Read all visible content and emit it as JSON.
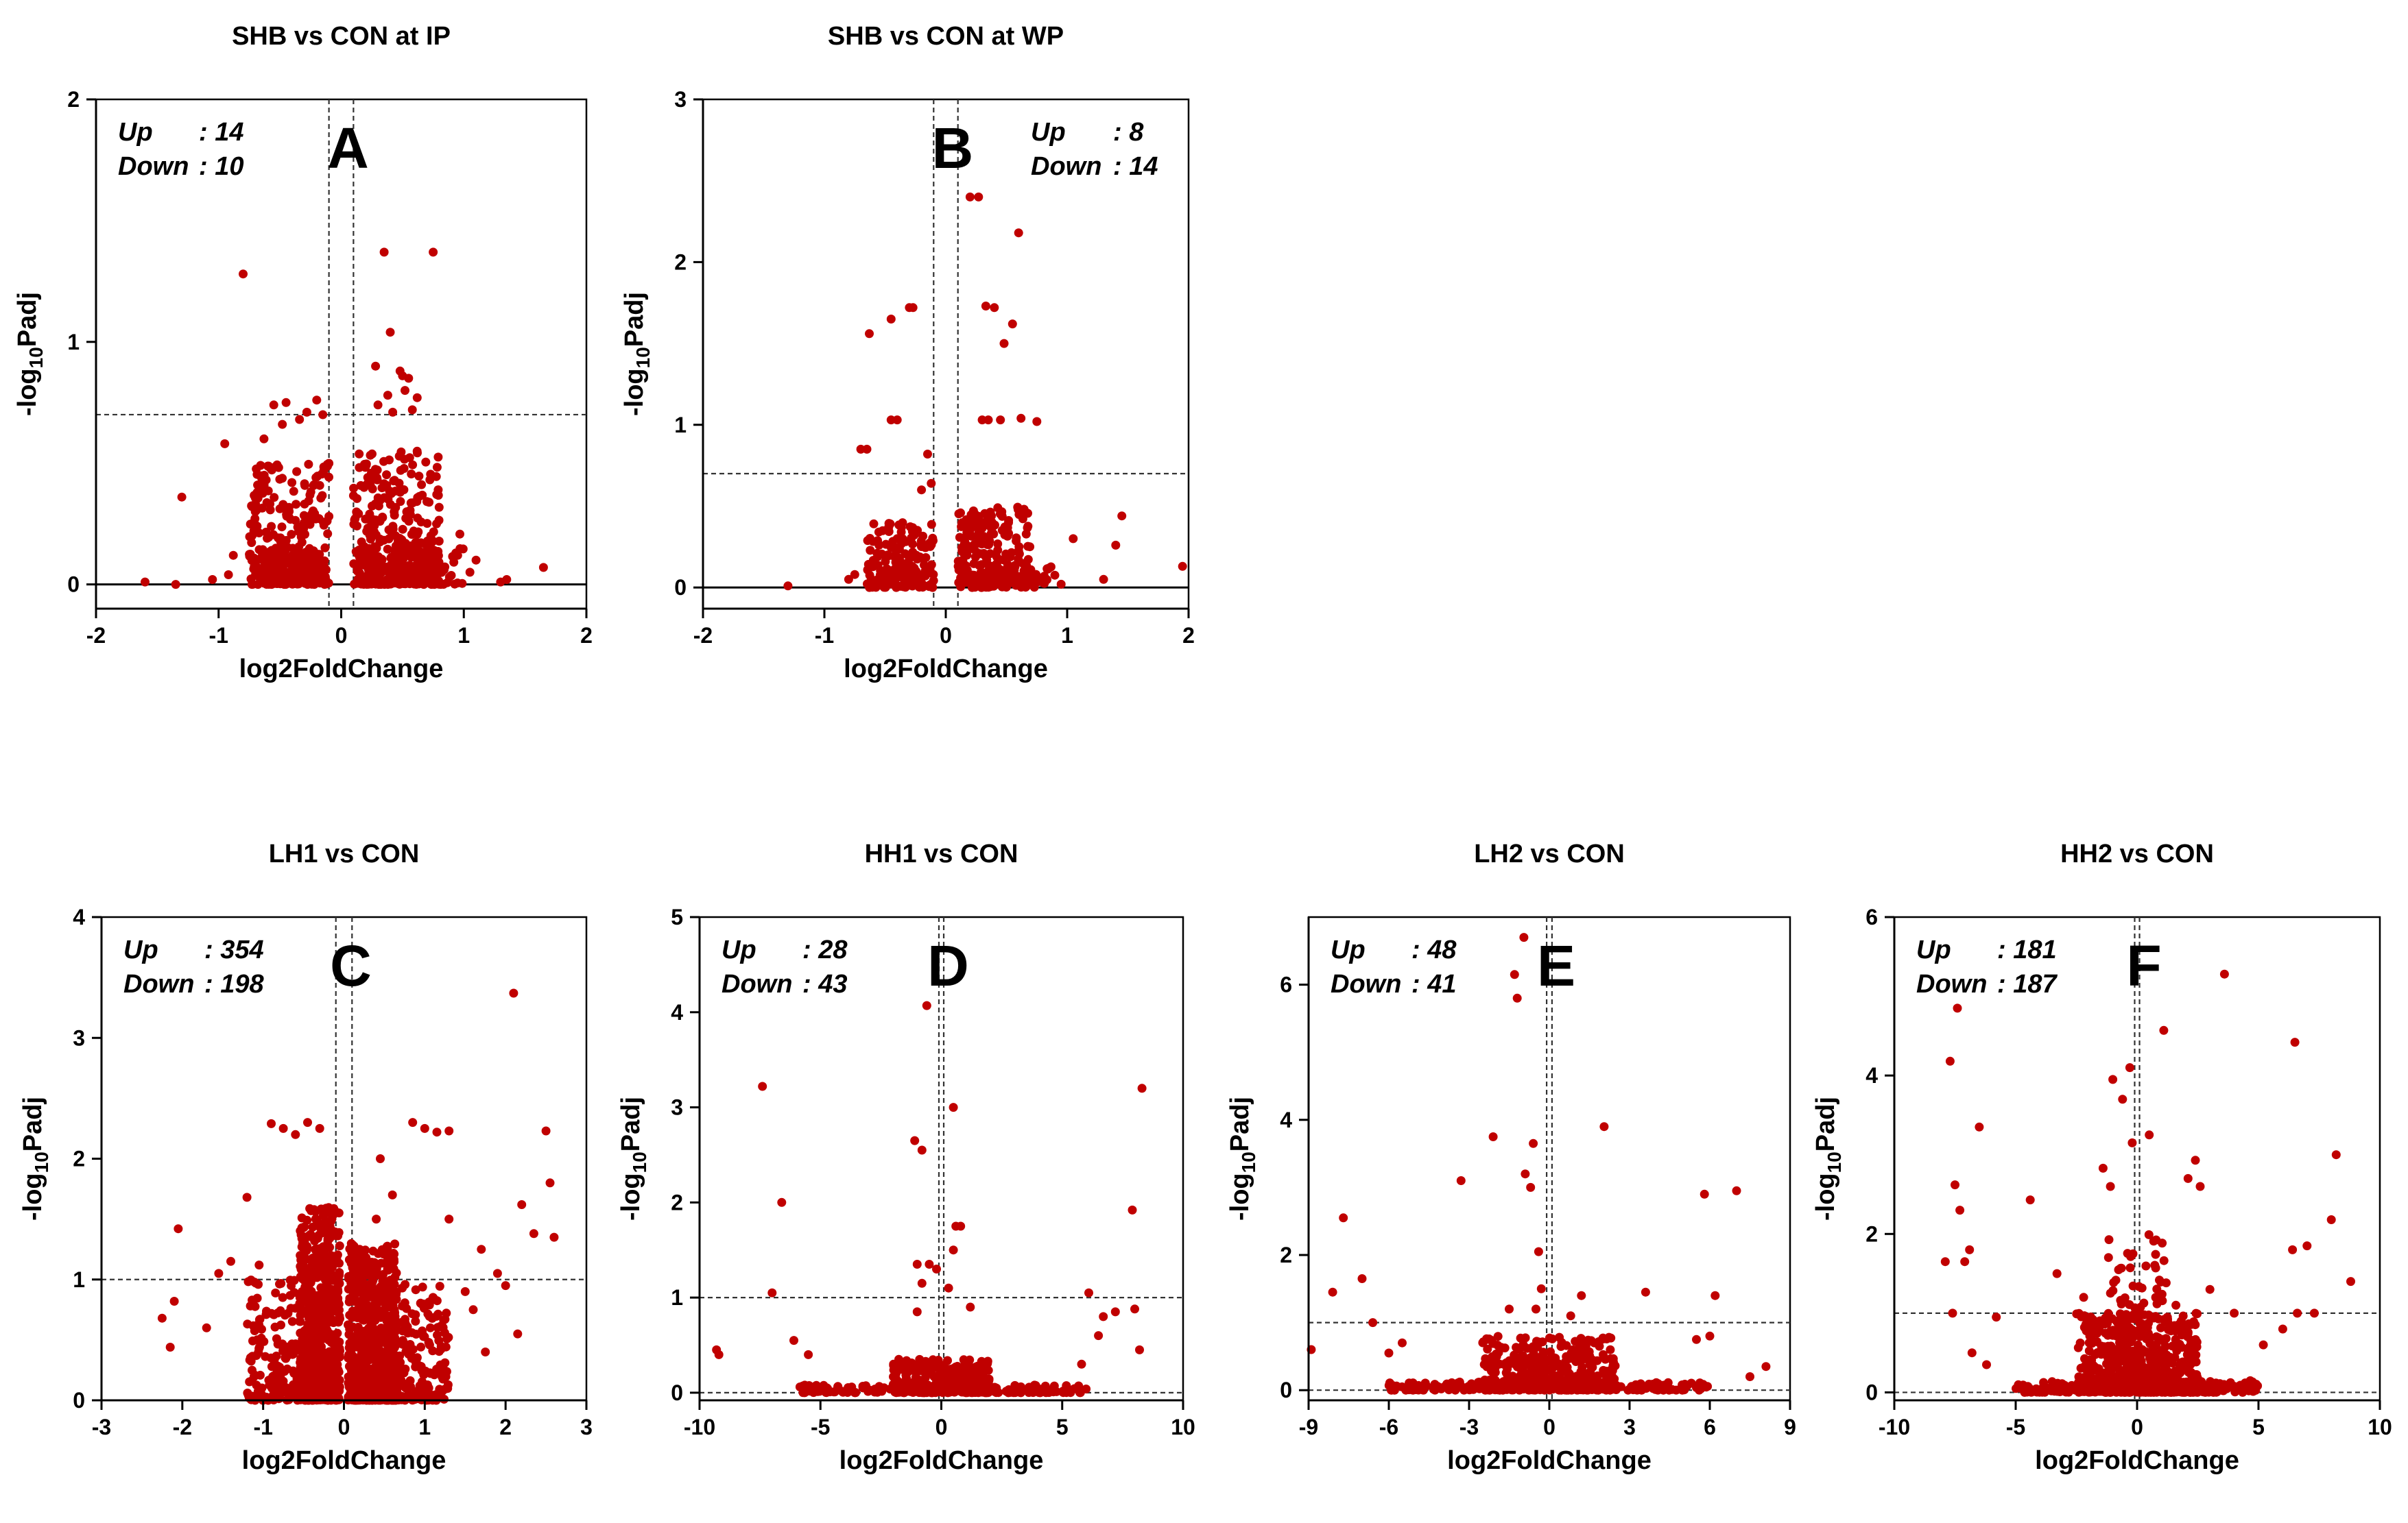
{
  "colors": {
    "points": "#C00000",
    "lines": "#000000"
  },
  "chart_data": [
    {
      "type": "scatter",
      "id": "A",
      "letter": "A",
      "title": "SHB vs CON at IP",
      "xlabel": "log2FoldChange",
      "ylabel": "-log10Padj",
      "xlim": [
        -2,
        2
      ],
      "ylim": [
        -0.1,
        2
      ],
      "xticks": [
        -2,
        -1,
        0,
        1,
        2
      ],
      "yticks": [
        0,
        1,
        2
      ],
      "thresholds": {
        "x": [
          -0.1,
          0.1
        ],
        "y": 0.7
      },
      "zero_line": "solid",
      "legend": {
        "up_label": "Up",
        "up_value": ": 14",
        "down_label": "Down",
        "down_value": ": 10"
      },
      "points": [
        [
          -0.8,
          1.28
        ],
        [
          0.35,
          1.37
        ],
        [
          0.75,
          1.37
        ],
        [
          0.4,
          1.04
        ],
        [
          0.48,
          0.88
        ],
        [
          0.5,
          0.86
        ],
        [
          0.28,
          0.9
        ],
        [
          0.55,
          0.85
        ],
        [
          0.52,
          0.8
        ],
        [
          0.38,
          0.78
        ],
        [
          0.62,
          0.77
        ],
        [
          0.3,
          0.74
        ],
        [
          0.58,
          0.72
        ],
        [
          0.42,
          0.71
        ],
        [
          -0.45,
          0.75
        ],
        [
          -0.2,
          0.76
        ],
        [
          -0.55,
          0.74
        ],
        [
          -0.28,
          0.71
        ],
        [
          -0.15,
          0.7
        ],
        [
          -0.48,
          0.66
        ],
        [
          -0.34,
          0.68
        ],
        [
          -0.63,
          0.6
        ],
        [
          -0.95,
          0.58
        ],
        [
          -1.3,
          0.36
        ],
        [
          -1.6,
          0.01
        ],
        [
          -1.35,
          0.0
        ],
        [
          1.65,
          0.07
        ],
        [
          1.3,
          0.01
        ],
        [
          1.35,
          0.02
        ],
        [
          1.05,
          0.05
        ],
        [
          1.1,
          0.1
        ],
        [
          0.95,
          0.12
        ],
        [
          -0.88,
          0.12
        ],
        [
          -0.92,
          0.04
        ],
        [
          -1.05,
          0.02
        ]
      ],
      "clusters": [
        {
          "x": [
            -0.75,
            -0.1
          ],
          "y": [
            0,
            0.5
          ],
          "n": 260
        },
        {
          "x": [
            0.1,
            0.8
          ],
          "y": [
            0,
            0.55
          ],
          "n": 320
        },
        {
          "x": [
            0.2,
            1.0
          ],
          "y": [
            0,
            0.25
          ],
          "n": 90
        },
        {
          "x": [
            -0.65,
            -0.15
          ],
          "y": [
            0,
            0.15
          ],
          "n": 90
        }
      ]
    },
    {
      "type": "scatter",
      "id": "B",
      "letter": "B",
      "title": "SHB vs CON at WP",
      "xlabel": "log2FoldChange",
      "ylabel": "-log10Padj",
      "xlim": [
        -2,
        2
      ],
      "ylim": [
        -0.13,
        3
      ],
      "xticks": [
        -2,
        -1,
        0,
        1,
        2
      ],
      "yticks": [
        0,
        1,
        2,
        3
      ],
      "thresholds": {
        "x": [
          -0.1,
          0.1
        ],
        "y": 0.7
      },
      "zero_line": "solid",
      "legend": {
        "up_label": "Up",
        "up_value": ": 8",
        "down_label": "Down",
        "down_value": ": 14"
      },
      "points": [
        [
          0.2,
          2.4
        ],
        [
          0.27,
          2.4
        ],
        [
          0.6,
          2.18
        ],
        [
          -0.3,
          1.72
        ],
        [
          -0.27,
          1.72
        ],
        [
          0.33,
          1.73
        ],
        [
          0.4,
          1.72
        ],
        [
          -0.45,
          1.65
        ],
        [
          0.55,
          1.62
        ],
        [
          -0.63,
          1.56
        ],
        [
          0.48,
          1.5
        ],
        [
          -0.45,
          1.03
        ],
        [
          -0.4,
          1.03
        ],
        [
          0.3,
          1.03
        ],
        [
          0.35,
          1.03
        ],
        [
          0.45,
          1.03
        ],
        [
          0.62,
          1.04
        ],
        [
          0.75,
          1.02
        ],
        [
          -0.7,
          0.85
        ],
        [
          -0.65,
          0.85
        ],
        [
          -0.15,
          0.82
        ],
        [
          -0.12,
          0.64
        ],
        [
          -0.2,
          0.6
        ],
        [
          -0.4,
          0.3
        ],
        [
          -0.55,
          0.26
        ],
        [
          1.05,
          0.3
        ],
        [
          1.4,
          0.26
        ],
        [
          1.45,
          0.44
        ],
        [
          1.95,
          0.13
        ],
        [
          1.3,
          0.05
        ],
        [
          0.8,
          0.06
        ],
        [
          0.95,
          0.02
        ],
        [
          -1.3,
          0.01
        ],
        [
          -0.8,
          0.05
        ],
        [
          -0.75,
          0.08
        ]
      ],
      "clusters": [
        {
          "x": [
            -0.65,
            -0.1
          ],
          "y": [
            0,
            0.4
          ],
          "n": 160
        },
        {
          "x": [
            0.1,
            0.7
          ],
          "y": [
            0,
            0.5
          ],
          "n": 200
        },
        {
          "x": [
            0.2,
            0.9
          ],
          "y": [
            0,
            0.15
          ],
          "n": 60
        }
      ]
    },
    {
      "type": "scatter",
      "id": "C",
      "letter": "C",
      "title": "LH1 vs CON",
      "xlabel": "log2FoldChange",
      "ylabel": "-log10Padj",
      "xlim": [
        -3,
        3
      ],
      "ylim": [
        0,
        4
      ],
      "xticks": [
        -3,
        -2,
        -1,
        0,
        1,
        2,
        3
      ],
      "yticks": [
        0,
        1,
        2,
        3,
        4
      ],
      "thresholds": {
        "x": [
          -0.1,
          0.1
        ],
        "y": 1
      },
      "zero_line": "none",
      "legend": {
        "up_label": "Up",
        "up_value": ": 354",
        "down_label": "Down",
        "down_value": ": 198"
      },
      "points": [
        [
          2.1,
          3.37
        ],
        [
          2.5,
          2.23
        ],
        [
          2.55,
          1.8
        ],
        [
          2.6,
          1.35
        ],
        [
          2.2,
          1.62
        ],
        [
          2.35,
          1.38
        ],
        [
          -2.05,
          1.42
        ],
        [
          -2.25,
          0.68
        ],
        [
          -2.15,
          0.44
        ],
        [
          -2.1,
          0.82
        ],
        [
          -0.9,
          2.29
        ],
        [
          -0.75,
          2.25
        ],
        [
          -0.45,
          2.3
        ],
        [
          -0.3,
          2.25
        ],
        [
          -0.6,
          2.2
        ],
        [
          0.85,
          2.3
        ],
        [
          1.0,
          2.25
        ],
        [
          1.15,
          2.22
        ],
        [
          1.3,
          2.23
        ],
        [
          0.45,
          2.0
        ],
        [
          0.4,
          1.5
        ],
        [
          0.6,
          1.7
        ],
        [
          1.7,
          1.25
        ],
        [
          1.9,
          1.05
        ],
        [
          1.6,
          0.75
        ],
        [
          1.3,
          1.5
        ],
        [
          -1.2,
          1.68
        ],
        [
          -1.4,
          1.15
        ],
        [
          -1.55,
          1.05
        ],
        [
          -1.7,
          0.6
        ],
        [
          -1.05,
          1.12
        ],
        [
          2.0,
          0.95
        ],
        [
          2.15,
          0.55
        ],
        [
          1.5,
          0.9
        ],
        [
          1.75,
          0.4
        ]
      ],
      "clusters": [
        {
          "x": [
            -0.55,
            -0.05
          ],
          "y": [
            0,
            1.6
          ],
          "n": 650
        },
        {
          "x": [
            0.05,
            0.65
          ],
          "y": [
            0,
            1.3
          ],
          "n": 650
        },
        {
          "x": [
            -1.2,
            -0.35
          ],
          "y": [
            0,
            1.0
          ],
          "n": 200
        },
        {
          "x": [
            0.35,
            1.3
          ],
          "y": [
            0,
            1.0
          ],
          "n": 200
        }
      ]
    },
    {
      "type": "scatter",
      "id": "D",
      "letter": "D",
      "title": "HH1 vs CON",
      "xlabel": "log2FoldChange",
      "ylabel": "-log10Padj",
      "xlim": [
        -10,
        10
      ],
      "ylim": [
        -0.08,
        5
      ],
      "xticks": [
        -10,
        -5,
        0,
        5,
        10
      ],
      "yticks": [
        0,
        1,
        2,
        3,
        4,
        5
      ],
      "thresholds": {
        "x": [
          -0.1,
          0.1
        ],
        "y": 1
      },
      "zero_line": "dashed",
      "legend": {
        "up_label": "Up",
        "up_value": ": 28",
        "down_label": "Down",
        "down_value": ": 43"
      },
      "points": [
        [
          -0.6,
          4.07
        ],
        [
          -7.4,
          3.22
        ],
        [
          8.3,
          3.2
        ],
        [
          0.5,
          3.0
        ],
        [
          -6.6,
          2.0
        ],
        [
          -1.1,
          2.65
        ],
        [
          -0.8,
          2.55
        ],
        [
          7.9,
          1.92
        ],
        [
          0.6,
          1.75
        ],
        [
          0.8,
          1.75
        ],
        [
          0.5,
          1.5
        ],
        [
          -0.5,
          1.35
        ],
        [
          -1.0,
          1.35
        ],
        [
          -0.2,
          1.3
        ],
        [
          6.1,
          1.05
        ],
        [
          8.0,
          0.88
        ],
        [
          -7.0,
          1.05
        ],
        [
          -9.3,
          0.45
        ],
        [
          -9.2,
          0.4
        ],
        [
          -6.1,
          0.55
        ],
        [
          6.5,
          0.6
        ],
        [
          6.7,
          0.8
        ],
        [
          7.2,
          0.85
        ],
        [
          8.2,
          0.45
        ],
        [
          -5.5,
          0.4
        ],
        [
          5.8,
          0.3
        ],
        [
          1.2,
          0.9
        ],
        [
          -1.0,
          0.85
        ],
        [
          0.3,
          1.1
        ],
        [
          -0.8,
          1.15
        ]
      ],
      "clusters": [
        {
          "x": [
            -2,
            2
          ],
          "y": [
            0,
            0.35
          ],
          "n": 300
        },
        {
          "x": [
            -6,
            6
          ],
          "y": [
            0,
            0.08
          ],
          "n": 180
        }
      ]
    },
    {
      "type": "scatter",
      "id": "E",
      "letter": "E",
      "title": "LH2 vs CON",
      "xlabel": "log2FoldChange",
      "ylabel": "-log10Padj",
      "xlim": [
        -9,
        9
      ],
      "ylim": [
        -0.15,
        7
      ],
      "xticks": [
        -9,
        -6,
        -3,
        0,
        3,
        6,
        9
      ],
      "yticks": [
        0,
        2,
        4,
        6
      ],
      "thresholds": {
        "x": [
          -0.1,
          0.1
        ],
        "y": 1
      },
      "zero_line": "dashed",
      "legend": {
        "up_label": "Up",
        "up_value": ": 48",
        "down_label": "Down",
        "down_value": ": 41"
      },
      "points": [
        [
          -0.95,
          6.7
        ],
        [
          -1.3,
          6.15
        ],
        [
          -1.2,
          5.8
        ],
        [
          2.05,
          3.9
        ],
        [
          -0.6,
          3.65
        ],
        [
          -2.1,
          3.75
        ],
        [
          -3.3,
          3.1
        ],
        [
          -0.9,
          3.2
        ],
        [
          -0.7,
          3.0
        ],
        [
          5.8,
          2.9
        ],
        [
          7.0,
          2.95
        ],
        [
          -7.7,
          2.55
        ],
        [
          -0.4,
          2.05
        ],
        [
          -8.1,
          1.45
        ],
        [
          -7.0,
          1.65
        ],
        [
          -6.6,
          1.0
        ],
        [
          6.2,
          1.4
        ],
        [
          3.6,
          1.45
        ],
        [
          8.1,
          0.35
        ],
        [
          6.0,
          0.8
        ],
        [
          5.5,
          0.75
        ],
        [
          -6.0,
          0.55
        ],
        [
          -5.5,
          0.7
        ],
        [
          -8.9,
          0.6
        ],
        [
          7.5,
          0.2
        ],
        [
          -1.5,
          1.2
        ],
        [
          1.2,
          1.4
        ],
        [
          0.8,
          1.1
        ],
        [
          -0.5,
          1.2
        ],
        [
          -0.3,
          1.5
        ]
      ],
      "clusters": [
        {
          "x": [
            -2.5,
            2.5
          ],
          "y": [
            0,
            0.8
          ],
          "n": 380
        },
        {
          "x": [
            -6,
            6
          ],
          "y": [
            0,
            0.12
          ],
          "n": 200
        }
      ]
    },
    {
      "type": "scatter",
      "id": "F",
      "letter": "F",
      "title": "HH2 vs CON",
      "xlabel": "log2FoldChange",
      "ylabel": "-log10Padj",
      "xlim": [
        -10,
        10
      ],
      "ylim": [
        -0.1,
        6
      ],
      "xticks": [
        -10,
        -5,
        0,
        5,
        10
      ],
      "yticks": [
        0,
        2,
        4,
        6
      ],
      "thresholds": {
        "x": [
          -0.1,
          0.1
        ],
        "y": 1
      },
      "zero_line": "dashed",
      "legend": {
        "up_label": "Up",
        "up_value": ": 181",
        "down_label": "Down",
        "down_value": ": 187"
      },
      "points": [
        [
          3.6,
          5.28
        ],
        [
          -7.4,
          4.85
        ],
        [
          -7.7,
          4.18
        ],
        [
          6.5,
          4.42
        ],
        [
          1.1,
          4.57
        ],
        [
          -0.3,
          4.1
        ],
        [
          -6.5,
          3.35
        ],
        [
          -0.6,
          3.7
        ],
        [
          -1.0,
          3.95
        ],
        [
          -7.5,
          2.62
        ],
        [
          -7.3,
          2.3
        ],
        [
          8.2,
          3.0
        ],
        [
          -4.4,
          2.43
        ],
        [
          -1.4,
          2.83
        ],
        [
          -1.1,
          2.6
        ],
        [
          2.4,
          2.93
        ],
        [
          2.1,
          2.7
        ],
        [
          2.6,
          2.6
        ],
        [
          0.5,
          3.25
        ],
        [
          -0.2,
          3.15
        ],
        [
          8.0,
          2.18
        ],
        [
          7.0,
          1.85
        ],
        [
          -6.9,
          1.8
        ],
        [
          -7.1,
          1.65
        ],
        [
          6.4,
          1.8
        ],
        [
          -7.9,
          1.65
        ],
        [
          8.8,
          1.4
        ],
        [
          -7.6,
          1.0
        ],
        [
          -5.8,
          0.95
        ],
        [
          6.6,
          1.0
        ],
        [
          7.3,
          1.0
        ],
        [
          -6.8,
          0.5
        ],
        [
          -6.2,
          0.35
        ],
        [
          5.2,
          0.6
        ],
        [
          6.0,
          0.8
        ],
        [
          -3.3,
          1.5
        ],
        [
          3.0,
          1.3
        ],
        [
          -2.2,
          1.2
        ],
        [
          1.6,
          1.1
        ],
        [
          4.0,
          1.0
        ]
      ],
      "clusters": [
        {
          "x": [
            -2.5,
            2.5
          ],
          "y": [
            0,
            1.0
          ],
          "n": 480
        },
        {
          "x": [
            -1.2,
            1.2
          ],
          "y": [
            0,
            2.0
          ],
          "n": 140
        },
        {
          "x": [
            -5,
            5
          ],
          "y": [
            0,
            0.15
          ],
          "n": 220
        }
      ]
    }
  ]
}
